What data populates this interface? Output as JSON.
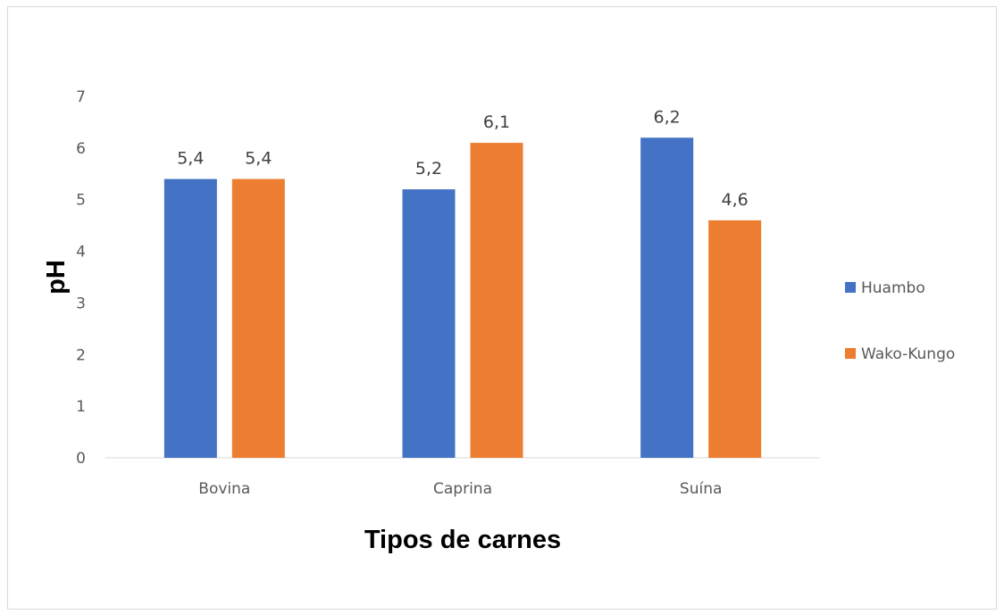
{
  "chart_data": {
    "type": "bar",
    "categories": [
      "Bovina",
      "Caprina",
      "Suína"
    ],
    "series": [
      {
        "name": "Huambo",
        "values": [
          5.4,
          5.2,
          6.2
        ],
        "labels": [
          "5,4",
          "5,2",
          "6,2"
        ],
        "color": "#4472C4"
      },
      {
        "name": "Wako-Kungo",
        "values": [
          5.4,
          6.1,
          4.6
        ],
        "labels": [
          "5,4",
          "6,1",
          "4,6"
        ],
        "color": "#ED7D31"
      }
    ],
    "title": "",
    "xlabel": "Tipos de carnes",
    "ylabel": "pH",
    "ylim": [
      0,
      7
    ],
    "yticks": [
      0,
      1,
      2,
      3,
      4,
      5,
      6,
      7
    ],
    "grid": false,
    "legend": "right"
  }
}
